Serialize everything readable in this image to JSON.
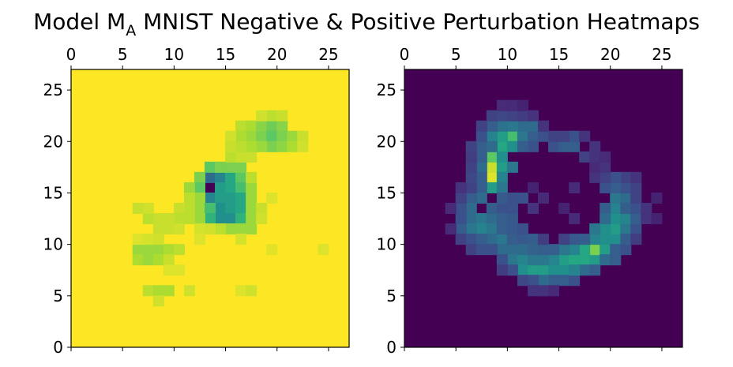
{
  "title": {
    "prefix": "Model M",
    "subscript": "A",
    "suffix": " MNIST Negative & Positive Perturbation Heatmaps"
  },
  "chart_data": [
    {
      "type": "heatmap",
      "name": "negative",
      "colormap": "viridis",
      "grid_size": 27,
      "xlim": [
        0,
        27
      ],
      "ylim": [
        0,
        27
      ],
      "x_ticks": [
        0,
        5,
        10,
        15,
        20,
        25
      ],
      "y_ticks": [
        0,
        5,
        10,
        15,
        20,
        25
      ],
      "x_axis_position": "top",
      "background_value": 1.0,
      "cells": [
        [
          13,
          15,
          0.0
        ],
        [
          13,
          16,
          0.35
        ],
        [
          13,
          14,
          0.45
        ],
        [
          14,
          16,
          0.45
        ],
        [
          14,
          15,
          0.55
        ],
        [
          14,
          14,
          0.55
        ],
        [
          14,
          13,
          0.5
        ],
        [
          14,
          12,
          0.5
        ],
        [
          15,
          16,
          0.6
        ],
        [
          15,
          15,
          0.6
        ],
        [
          15,
          14,
          0.55
        ],
        [
          15,
          13,
          0.55
        ],
        [
          15,
          12,
          0.5
        ],
        [
          16,
          16,
          0.75
        ],
        [
          16,
          15,
          0.7
        ],
        [
          16,
          14,
          0.6
        ],
        [
          16,
          13,
          0.6
        ],
        [
          16,
          12,
          0.65
        ],
        [
          12,
          16,
          0.8
        ],
        [
          12,
          15,
          0.75
        ],
        [
          12,
          14,
          0.85
        ],
        [
          11,
          15,
          0.85
        ],
        [
          13,
          17,
          0.75
        ],
        [
          14,
          17,
          0.8
        ],
        [
          15,
          17,
          0.8
        ],
        [
          16,
          17,
          0.8
        ],
        [
          12,
          13,
          0.85
        ],
        [
          13,
          13,
          0.7
        ],
        [
          13,
          12,
          0.65
        ],
        [
          12,
          12,
          0.85
        ],
        [
          15,
          11,
          0.85
        ],
        [
          16,
          11,
          0.85
        ],
        [
          17,
          11,
          0.85
        ],
        [
          14,
          11,
          0.9
        ],
        [
          17,
          14,
          0.85
        ],
        [
          17,
          15,
          0.85
        ],
        [
          17,
          13,
          0.85
        ],
        [
          17,
          12,
          0.85
        ],
        [
          17,
          16,
          0.9
        ],
        [
          16,
          18,
          0.92
        ],
        [
          17,
          18,
          0.92
        ],
        [
          15,
          18,
          0.9
        ],
        [
          11,
          14,
          0.9
        ],
        [
          11,
          13,
          0.9
        ],
        [
          11,
          12,
          0.9
        ],
        [
          10,
          13,
          0.92
        ],
        [
          10,
          12,
          0.9
        ],
        [
          9,
          12,
          0.92
        ],
        [
          8,
          12,
          0.92
        ],
        [
          7,
          12,
          0.9
        ],
        [
          7,
          13,
          0.93
        ],
        [
          6,
          13,
          0.92
        ],
        [
          9,
          11,
          0.92
        ],
        [
          8,
          11,
          0.92
        ],
        [
          10,
          11,
          0.93
        ],
        [
          6,
          9,
          0.85
        ],
        [
          7,
          9,
          0.85
        ],
        [
          8,
          9,
          0.85
        ],
        [
          9,
          9,
          0.88
        ],
        [
          10,
          9,
          0.9
        ],
        [
          6,
          8,
          0.88
        ],
        [
          7,
          8,
          0.85
        ],
        [
          8,
          8,
          0.88
        ],
        [
          9,
          8,
          0.92
        ],
        [
          6,
          10,
          0.95
        ],
        [
          7,
          10,
          0.94
        ],
        [
          8,
          10,
          0.93
        ],
        [
          7,
          5,
          0.9
        ],
        [
          8,
          5,
          0.88
        ],
        [
          9,
          5,
          0.88
        ],
        [
          8,
          4,
          0.93
        ],
        [
          11,
          5,
          0.93
        ],
        [
          16,
          5,
          0.95
        ],
        [
          17,
          5,
          0.93
        ],
        [
          9,
          7,
          0.95
        ],
        [
          10,
          7,
          0.95
        ],
        [
          16,
          21,
          0.9
        ],
        [
          17,
          21,
          0.88
        ],
        [
          17,
          20,
          0.85
        ],
        [
          18,
          20,
          0.8
        ],
        [
          18,
          21,
          0.82
        ],
        [
          19,
          21,
          0.78
        ],
        [
          19,
          20,
          0.75
        ],
        [
          20,
          21,
          0.82
        ],
        [
          20,
          20,
          0.8
        ],
        [
          21,
          20,
          0.85
        ],
        [
          19,
          19,
          0.8
        ],
        [
          20,
          19,
          0.83
        ],
        [
          21,
          19,
          0.88
        ],
        [
          18,
          19,
          0.85
        ],
        [
          16,
          20,
          0.88
        ],
        [
          17,
          19,
          0.88
        ],
        [
          16,
          19,
          0.9
        ],
        [
          22,
          20,
          0.92
        ],
        [
          22,
          19,
          0.93
        ],
        [
          19,
          22,
          0.9
        ],
        [
          20,
          22,
          0.92
        ],
        [
          18,
          22,
          0.93
        ],
        [
          15,
          20,
          0.93
        ],
        [
          15,
          19,
          0.92
        ],
        [
          18,
          13,
          0.92
        ],
        [
          18,
          12,
          0.93
        ],
        [
          16,
          10,
          0.94
        ],
        [
          19,
          14,
          0.95
        ],
        [
          12,
          11,
          0.94
        ],
        [
          13,
          11,
          0.93
        ],
        [
          12,
          10,
          0.95
        ],
        [
          24,
          9,
          0.95
        ],
        [
          19,
          9,
          0.96
        ]
      ]
    },
    {
      "type": "heatmap",
      "name": "positive",
      "colormap": "viridis",
      "grid_size": 27,
      "xlim": [
        0,
        27
      ],
      "ylim": [
        0,
        27
      ],
      "x_ticks": [
        0,
        5,
        10,
        15,
        20,
        25
      ],
      "y_ticks": [
        0,
        5,
        10,
        15,
        20,
        25
      ],
      "x_axis_position": "top",
      "background_value": 0.0,
      "cells": [
        [
          8,
          16,
          0.95
        ],
        [
          8,
          17,
          0.92
        ],
        [
          8,
          15,
          0.55
        ],
        [
          8,
          18,
          0.75
        ],
        [
          9,
          19,
          0.6
        ],
        [
          10,
          20,
          0.7
        ],
        [
          9,
          20,
          0.55
        ],
        [
          8,
          20,
          0.45
        ],
        [
          10,
          19,
          0.5
        ],
        [
          9,
          17,
          0.55
        ],
        [
          9,
          16,
          0.45
        ],
        [
          9,
          15,
          0.4
        ],
        [
          9,
          18,
          0.5
        ],
        [
          10,
          17,
          0.4
        ],
        [
          7,
          17,
          0.35
        ],
        [
          7,
          16,
          0.3
        ],
        [
          7,
          18,
          0.3
        ],
        [
          7,
          19,
          0.3
        ],
        [
          8,
          19,
          0.35
        ],
        [
          11,
          20,
          0.4
        ],
        [
          11,
          21,
          0.35
        ],
        [
          10,
          21,
          0.4
        ],
        [
          9,
          21,
          0.38
        ],
        [
          8,
          21,
          0.3
        ],
        [
          12,
          20,
          0.3
        ],
        [
          12,
          21,
          0.35
        ],
        [
          13,
          20,
          0.25
        ],
        [
          14,
          19,
          0.25
        ],
        [
          15,
          19,
          0.3
        ],
        [
          16,
          19,
          0.3
        ],
        [
          16,
          20,
          0.25
        ],
        [
          15,
          20,
          0.2
        ],
        [
          12,
          19,
          0.25
        ],
        [
          11,
          19,
          0.3
        ],
        [
          7,
          15,
          0.3
        ],
        [
          7,
          14,
          0.35
        ],
        [
          6,
          14,
          0.3
        ],
        [
          6,
          13,
          0.35
        ],
        [
          5,
          13,
          0.25
        ],
        [
          6,
          12,
          0.35
        ],
        [
          7,
          12,
          0.4
        ],
        [
          7,
          11,
          0.45
        ],
        [
          6,
          11,
          0.4
        ],
        [
          5,
          11,
          0.3
        ],
        [
          8,
          12,
          0.35
        ],
        [
          8,
          11,
          0.4
        ],
        [
          8,
          10,
          0.35
        ],
        [
          9,
          10,
          0.4
        ],
        [
          9,
          9,
          0.35
        ],
        [
          10,
          9,
          0.35
        ],
        [
          10,
          8,
          0.4
        ],
        [
          11,
          8,
          0.45
        ],
        [
          11,
          7,
          0.5
        ],
        [
          12,
          7,
          0.55
        ],
        [
          13,
          7,
          0.55
        ],
        [
          14,
          7,
          0.5
        ],
        [
          15,
          7,
          0.5
        ],
        [
          15,
          8,
          0.55
        ],
        [
          16,
          8,
          0.6
        ],
        [
          17,
          8,
          0.6
        ],
        [
          18,
          8,
          0.55
        ],
        [
          18,
          9,
          0.8
        ],
        [
          17,
          9,
          0.6
        ],
        [
          19,
          9,
          0.55
        ],
        [
          19,
          10,
          0.5
        ],
        [
          20,
          10,
          0.5
        ],
        [
          20,
          11,
          0.55
        ],
        [
          19,
          11,
          0.5
        ],
        [
          20,
          12,
          0.5
        ],
        [
          21,
          11,
          0.4
        ],
        [
          21,
          12,
          0.45
        ],
        [
          20,
          13,
          0.45
        ],
        [
          20,
          14,
          0.4
        ],
        [
          21,
          14,
          0.35
        ],
        [
          19,
          13,
          0.3
        ],
        [
          19,
          12,
          0.35
        ],
        [
          18,
          10,
          0.45
        ],
        [
          18,
          11,
          0.4
        ],
        [
          16,
          9,
          0.45
        ],
        [
          15,
          9,
          0.4
        ],
        [
          14,
          8,
          0.45
        ],
        [
          13,
          8,
          0.4
        ],
        [
          12,
          8,
          0.4
        ],
        [
          14,
          6,
          0.3
        ],
        [
          13,
          6,
          0.35
        ],
        [
          15,
          6,
          0.3
        ],
        [
          16,
          6,
          0.25
        ],
        [
          12,
          6,
          0.25
        ],
        [
          17,
          7,
          0.35
        ],
        [
          18,
          7,
          0.3
        ],
        [
          16,
          7,
          0.45
        ],
        [
          19,
          8,
          0.35
        ],
        [
          20,
          8,
          0.3
        ],
        [
          20,
          9,
          0.3
        ],
        [
          21,
          9,
          0.25
        ],
        [
          21,
          10,
          0.3
        ],
        [
          22,
          11,
          0.25
        ],
        [
          22,
          12,
          0.3
        ],
        [
          21,
          13,
          0.3
        ],
        [
          22,
          13,
          0.25
        ],
        [
          21,
          15,
          0.25
        ],
        [
          22,
          15,
          0.2
        ],
        [
          21,
          16,
          0.2
        ],
        [
          20,
          15,
          0.3
        ],
        [
          20,
          16,
          0.25
        ],
        [
          19,
          15,
          0.25
        ],
        [
          19,
          16,
          0.2
        ],
        [
          8,
          13,
          0.3
        ],
        [
          9,
          13,
          0.25
        ],
        [
          9,
          14,
          0.28
        ],
        [
          10,
          14,
          0.25
        ],
        [
          11,
          14,
          0.25
        ],
        [
          10,
          10,
          0.3
        ],
        [
          11,
          10,
          0.28
        ],
        [
          12,
          10,
          0.3
        ],
        [
          11,
          9,
          0.35
        ],
        [
          12,
          9,
          0.32
        ],
        [
          13,
          9,
          0.3
        ],
        [
          10,
          11,
          0.28
        ],
        [
          11,
          11,
          0.25
        ],
        [
          5,
          12,
          0.25
        ],
        [
          5,
          14,
          0.2
        ],
        [
          6,
          15,
          0.2
        ],
        [
          6,
          16,
          0.22
        ],
        [
          6,
          17,
          0.2
        ],
        [
          5,
          15,
          0.15
        ],
        [
          6,
          18,
          0.18
        ],
        [
          7,
          20,
          0.25
        ],
        [
          6,
          19,
          0.2
        ],
        [
          7,
          21,
          0.2
        ],
        [
          8,
          22,
          0.2
        ],
        [
          9,
          22,
          0.22
        ],
        [
          10,
          22,
          0.2
        ],
        [
          11,
          22,
          0.18
        ],
        [
          12,
          22,
          0.15
        ],
        [
          13,
          21,
          0.15
        ],
        [
          14,
          20,
          0.2
        ],
        [
          17,
          20,
          0.15
        ],
        [
          18,
          19,
          0.15
        ],
        [
          17,
          18,
          0.2
        ],
        [
          18,
          18,
          0.15
        ],
        [
          5,
          10,
          0.2
        ],
        [
          6,
          10,
          0.25
        ],
        [
          7,
          10,
          0.3
        ],
        [
          6,
          9,
          0.2
        ],
        [
          7,
          9,
          0.25
        ],
        [
          8,
          9,
          0.25
        ],
        [
          9,
          8,
          0.25
        ],
        [
          10,
          7,
          0.25
        ],
        [
          11,
          6,
          0.22
        ],
        [
          12,
          5,
          0.15
        ],
        [
          13,
          5,
          0.15
        ],
        [
          14,
          5,
          0.12
        ],
        [
          9,
          7,
          0.18
        ],
        [
          4,
          13,
          0.12
        ],
        [
          4,
          11,
          0.12
        ],
        [
          22,
          14,
          0.2
        ],
        [
          22,
          16,
          0.15
        ],
        [
          23,
          13,
          0.15
        ],
        [
          23,
          12,
          0.15
        ],
        [
          22,
          10,
          0.18
        ],
        [
          16,
          12,
          0.12
        ],
        [
          15,
          13,
          0.1
        ],
        [
          13,
          14,
          0.12
        ],
        [
          12,
          13,
          0.15
        ],
        [
          12,
          15,
          0.1
        ],
        [
          16,
          15,
          0.12
        ],
        [
          18,
          16,
          0.15
        ],
        [
          18,
          17,
          0.12
        ],
        [
          19,
          17,
          0.15
        ],
        [
          19,
          18,
          0.12
        ],
        [
          10,
          23,
          0.12
        ],
        [
          11,
          23,
          0.1
        ],
        [
          9,
          23,
          0.12
        ],
        [
          24,
          12,
          0.1
        ],
        [
          24,
          14,
          0.1
        ],
        [
          10,
          12,
          0.28
        ],
        [
          9,
          12,
          0.3
        ],
        [
          10,
          13,
          0.25
        ],
        [
          9,
          11,
          0.3
        ],
        [
          17,
          10,
          0.3
        ],
        [
          16,
          10,
          0.28
        ],
        [
          15,
          10,
          0.2
        ],
        [
          14,
          9,
          0.3
        ],
        [
          13,
          10,
          0.18
        ]
      ]
    }
  ]
}
